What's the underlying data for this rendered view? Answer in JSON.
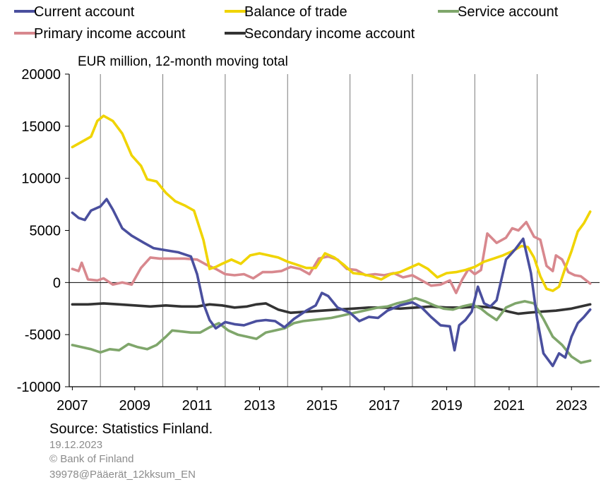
{
  "chart_data": {
    "type": "line",
    "unit_label": "EUR million, 12-month moving total",
    "y_ticks": [
      -10000,
      -5000,
      0,
      5000,
      10000,
      15000,
      20000
    ],
    "y_tick_labels": [
      "-10000",
      "-5000",
      "0",
      "5000",
      "10000",
      "15000",
      "20000"
    ],
    "ylim": [
      -10000,
      20000
    ],
    "xlim": [
      2006.9,
      2023.9
    ],
    "x_ticks": [
      2007,
      2009,
      2011,
      2013,
      2015,
      2017,
      2019,
      2021,
      2023
    ],
    "x_tick_labels": [
      "2007",
      "2009",
      "2011",
      "2013",
      "2015",
      "2017",
      "2019",
      "2021",
      "2023"
    ],
    "grid": "vertical",
    "legend_placement": "top",
    "series": [
      {
        "name": "Current account",
        "color": "#4a4f9e",
        "x": [
          2007.0,
          2007.2,
          2007.4,
          2007.6,
          2007.9,
          2008.1,
          2008.3,
          2008.6,
          2008.9,
          2009.3,
          2009.6,
          2010.0,
          2010.4,
          2010.8,
          2011.0,
          2011.2,
          2011.4,
          2011.6,
          2011.9,
          2012.2,
          2012.5,
          2012.9,
          2013.2,
          2013.5,
          2013.8,
          2014.1,
          2014.5,
          2014.8,
          2015.0,
          2015.2,
          2015.5,
          2015.9,
          2016.2,
          2016.5,
          2016.8,
          2017.1,
          2017.5,
          2017.9,
          2018.2,
          2018.5,
          2018.8,
          2019.1,
          2019.25,
          2019.4,
          2019.6,
          2019.8,
          2020.0,
          2020.2,
          2020.4,
          2020.6,
          2020.9,
          2021.2,
          2021.45,
          2021.7,
          2021.9,
          2022.1,
          2022.4,
          2022.6,
          2022.8,
          2023.0,
          2023.2,
          2023.4,
          2023.6
        ],
        "y": [
          6700,
          6200,
          6000,
          6900,
          7300,
          8000,
          7000,
          5200,
          4500,
          3800,
          3300,
          3100,
          2900,
          2500,
          800,
          -2000,
          -3600,
          -4400,
          -3800,
          -4000,
          -4100,
          -3700,
          -3600,
          -3700,
          -4300,
          -3500,
          -2700,
          -2200,
          -1000,
          -1300,
          -2400,
          -2900,
          -3700,
          -3300,
          -3400,
          -2700,
          -2200,
          -1900,
          -2400,
          -3300,
          -4100,
          -4200,
          -6500,
          -4100,
          -3600,
          -2800,
          -400,
          -2000,
          -2300,
          -1700,
          2200,
          3200,
          4200,
          900,
          -3500,
          -6800,
          -8000,
          -6800,
          -7200,
          -5200,
          -3900,
          -3300,
          -2600
        ]
      },
      {
        "name": "Balance of trade",
        "color": "#f0d400",
        "x": [
          2007.0,
          2007.3,
          2007.6,
          2007.8,
          2008.0,
          2008.3,
          2008.6,
          2008.9,
          2009.2,
          2009.4,
          2009.7,
          2010.0,
          2010.3,
          2010.6,
          2010.9,
          2011.2,
          2011.4,
          2011.6,
          2011.8,
          2012.1,
          2012.4,
          2012.7,
          2013.0,
          2013.3,
          2013.6,
          2013.9,
          2014.2,
          2014.5,
          2014.8,
          2015.1,
          2015.4,
          2015.7,
          2016.0,
          2016.3,
          2016.6,
          2016.9,
          2017.2,
          2017.5,
          2017.8,
          2018.1,
          2018.4,
          2018.7,
          2019.0,
          2019.3,
          2019.6,
          2019.9,
          2020.2,
          2020.5,
          2020.8,
          2021.1,
          2021.4,
          2021.6,
          2021.8,
          2022.0,
          2022.2,
          2022.4,
          2022.6,
          2022.8,
          2023.0,
          2023.2,
          2023.4,
          2023.6
        ],
        "y": [
          13000,
          13500,
          14000,
          15500,
          16000,
          15500,
          14300,
          12200,
          11200,
          9900,
          9700,
          8600,
          7800,
          7400,
          6900,
          4100,
          1300,
          1500,
          1800,
          2200,
          1800,
          2600,
          2800,
          2600,
          2400,
          2000,
          1700,
          1400,
          1400,
          2800,
          2400,
          1700,
          900,
          800,
          600,
          300,
          800,
          1000,
          1400,
          1800,
          1300,
          500,
          900,
          1000,
          1200,
          1500,
          2000,
          2300,
          2600,
          3000,
          3500,
          3400,
          2400,
          600,
          -600,
          -800,
          -400,
          1400,
          3000,
          4900,
          5700,
          6800
        ]
      },
      {
        "name": "Service account",
        "color": "#7fa66b",
        "x": [
          2007.0,
          2007.3,
          2007.6,
          2007.9,
          2008.2,
          2008.5,
          2008.8,
          2009.1,
          2009.4,
          2009.7,
          2010.0,
          2010.2,
          2010.5,
          2010.8,
          2011.1,
          2011.4,
          2011.7,
          2012.0,
          2012.3,
          2012.6,
          2012.9,
          2013.2,
          2013.5,
          2013.8,
          2014.1,
          2014.4,
          2014.7,
          2015.0,
          2015.3,
          2015.6,
          2015.9,
          2016.2,
          2016.5,
          2016.8,
          2017.1,
          2017.4,
          2017.7,
          2018.0,
          2018.3,
          2018.6,
          2018.9,
          2019.2,
          2019.5,
          2019.8,
          2020.1,
          2020.3,
          2020.6,
          2020.9,
          2021.2,
          2021.5,
          2021.8,
          2022.1,
          2022.4,
          2022.7,
          2023.0,
          2023.3,
          2023.6
        ],
        "y": [
          -6000,
          -6200,
          -6400,
          -6700,
          -6400,
          -6500,
          -5900,
          -6200,
          -6400,
          -6000,
          -5200,
          -4600,
          -4700,
          -4800,
          -4800,
          -4300,
          -3900,
          -4600,
          -5000,
          -5200,
          -5400,
          -4800,
          -4600,
          -4400,
          -3900,
          -3700,
          -3600,
          -3500,
          -3400,
          -3200,
          -3000,
          -2800,
          -2600,
          -2400,
          -2300,
          -2000,
          -1800,
          -1500,
          -1800,
          -2200,
          -2500,
          -2600,
          -2300,
          -2100,
          -2500,
          -3000,
          -3600,
          -2400,
          -2000,
          -1800,
          -2000,
          -3500,
          -5200,
          -6000,
          -7100,
          -7700,
          -7500
        ]
      },
      {
        "name": "Primary income account",
        "color": "#d8888e",
        "x": [
          2007.0,
          2007.2,
          2007.3,
          2007.5,
          2007.8,
          2008.0,
          2008.3,
          2008.6,
          2008.9,
          2009.2,
          2009.5,
          2009.8,
          2010.2,
          2010.6,
          2011.0,
          2011.3,
          2011.6,
          2011.9,
          2012.2,
          2012.5,
          2012.8,
          2013.1,
          2013.4,
          2013.7,
          2014.0,
          2014.3,
          2014.6,
          2014.9,
          2015.2,
          2015.5,
          2015.8,
          2016.1,
          2016.4,
          2016.7,
          2017.0,
          2017.3,
          2017.6,
          2017.9,
          2018.2,
          2018.5,
          2018.8,
          2019.1,
          2019.3,
          2019.5,
          2019.7,
          2019.9,
          2020.1,
          2020.3,
          2020.6,
          2020.9,
          2021.1,
          2021.3,
          2021.55,
          2021.8,
          2022.0,
          2022.2,
          2022.4,
          2022.5,
          2022.7,
          2022.9,
          2023.1,
          2023.3,
          2023.6
        ],
        "y": [
          1300,
          1100,
          1900,
          300,
          200,
          400,
          -200,
          0,
          -200,
          1400,
          2400,
          2300,
          2300,
          2300,
          2200,
          1700,
          1300,
          800,
          700,
          800,
          400,
          1000,
          1000,
          1100,
          1500,
          1300,
          800,
          2300,
          2500,
          2200,
          1300,
          1200,
          700,
          800,
          700,
          900,
          500,
          700,
          200,
          -300,
          -200,
          200,
          -1000,
          300,
          1300,
          800,
          1200,
          4700,
          3800,
          4300,
          5200,
          5000,
          5800,
          4400,
          4100,
          1600,
          1100,
          2600,
          2200,
          1000,
          700,
          600,
          -100
        ]
      },
      {
        "name": "Secondary income account",
        "color": "#333333",
        "x": [
          2007.0,
          2007.5,
          2008.0,
          2008.5,
          2009.0,
          2009.5,
          2010.0,
          2010.5,
          2011.0,
          2011.4,
          2011.8,
          2012.2,
          2012.6,
          2012.9,
          2013.2,
          2013.6,
          2014.0,
          2014.5,
          2015.0,
          2015.5,
          2016.0,
          2016.5,
          2017.0,
          2017.5,
          2018.0,
          2018.5,
          2019.0,
          2019.5,
          2020.0,
          2020.5,
          2021.0,
          2021.3,
          2021.6,
          2022.0,
          2022.5,
          2023.0,
          2023.6
        ],
        "y": [
          -2100,
          -2100,
          -2000,
          -2100,
          -2200,
          -2300,
          -2200,
          -2300,
          -2300,
          -2100,
          -2200,
          -2400,
          -2300,
          -2100,
          -2000,
          -2600,
          -2900,
          -2800,
          -2700,
          -2600,
          -2500,
          -2400,
          -2400,
          -2500,
          -2400,
          -2300,
          -2400,
          -2400,
          -2300,
          -2400,
          -2800,
          -3000,
          -2900,
          -2800,
          -2700,
          -2500,
          -2100
        ]
      }
    ]
  },
  "footer": {
    "source": "Source: Statistics Finland.",
    "date": "19.12.2023",
    "copyright": "© Bank of Finland",
    "code": "39978@Pääerät_12kksum_EN"
  }
}
